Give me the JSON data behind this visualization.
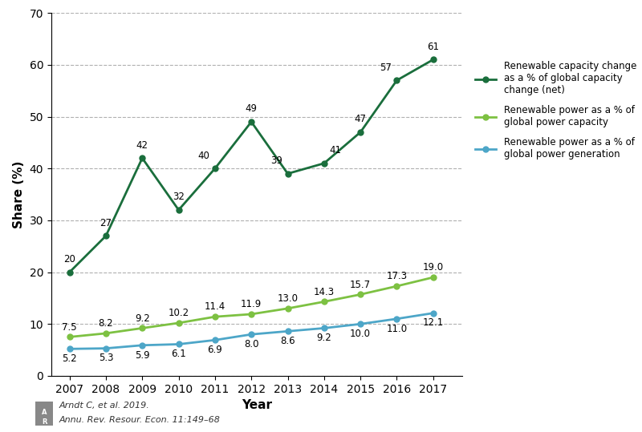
{
  "years": [
    2007,
    2008,
    2009,
    2010,
    2011,
    2012,
    2013,
    2014,
    2015,
    2016,
    2017
  ],
  "series1": {
    "label": "Renewable capacity change\nas a % of global capacity\nchange (net)",
    "values": [
      20,
      27,
      42,
      32,
      40,
      49,
      39,
      41,
      47,
      57,
      61
    ],
    "color": "#1a6e3c",
    "marker": "o",
    "linewidth": 2.0
  },
  "series2": {
    "label": "Renewable power as a % of\nglobal power capacity",
    "values": [
      7.5,
      8.2,
      9.2,
      10.2,
      11.4,
      11.9,
      13.0,
      14.3,
      15.7,
      17.3,
      19.0
    ],
    "color": "#7dc142",
    "marker": "o",
    "linewidth": 2.0
  },
  "series3": {
    "label": "Renewable power as a % of\nglobal power generation",
    "values": [
      5.2,
      5.3,
      5.9,
      6.1,
      6.9,
      8.0,
      8.6,
      9.2,
      10.0,
      11.0,
      12.1
    ],
    "color": "#4da6c8",
    "marker": "o",
    "linewidth": 2.0
  },
  "xlabel": "Year",
  "ylabel": "Share (%)",
  "ylim": [
    0,
    70
  ],
  "yticks": [
    0,
    10,
    20,
    30,
    40,
    50,
    60,
    70
  ],
  "background_color": "#ffffff",
  "grid_color": "#b0b0b0",
  "annotation_fontsize": 8.5,
  "axis_label_fontsize": 11,
  "tick_fontsize": 10,
  "legend_fontsize": 8.5,
  "footer_line1": "Arndt C, et al. 2019.",
  "footer_line2": "Annu. Rev. Resour. Econ. 11:149–68"
}
